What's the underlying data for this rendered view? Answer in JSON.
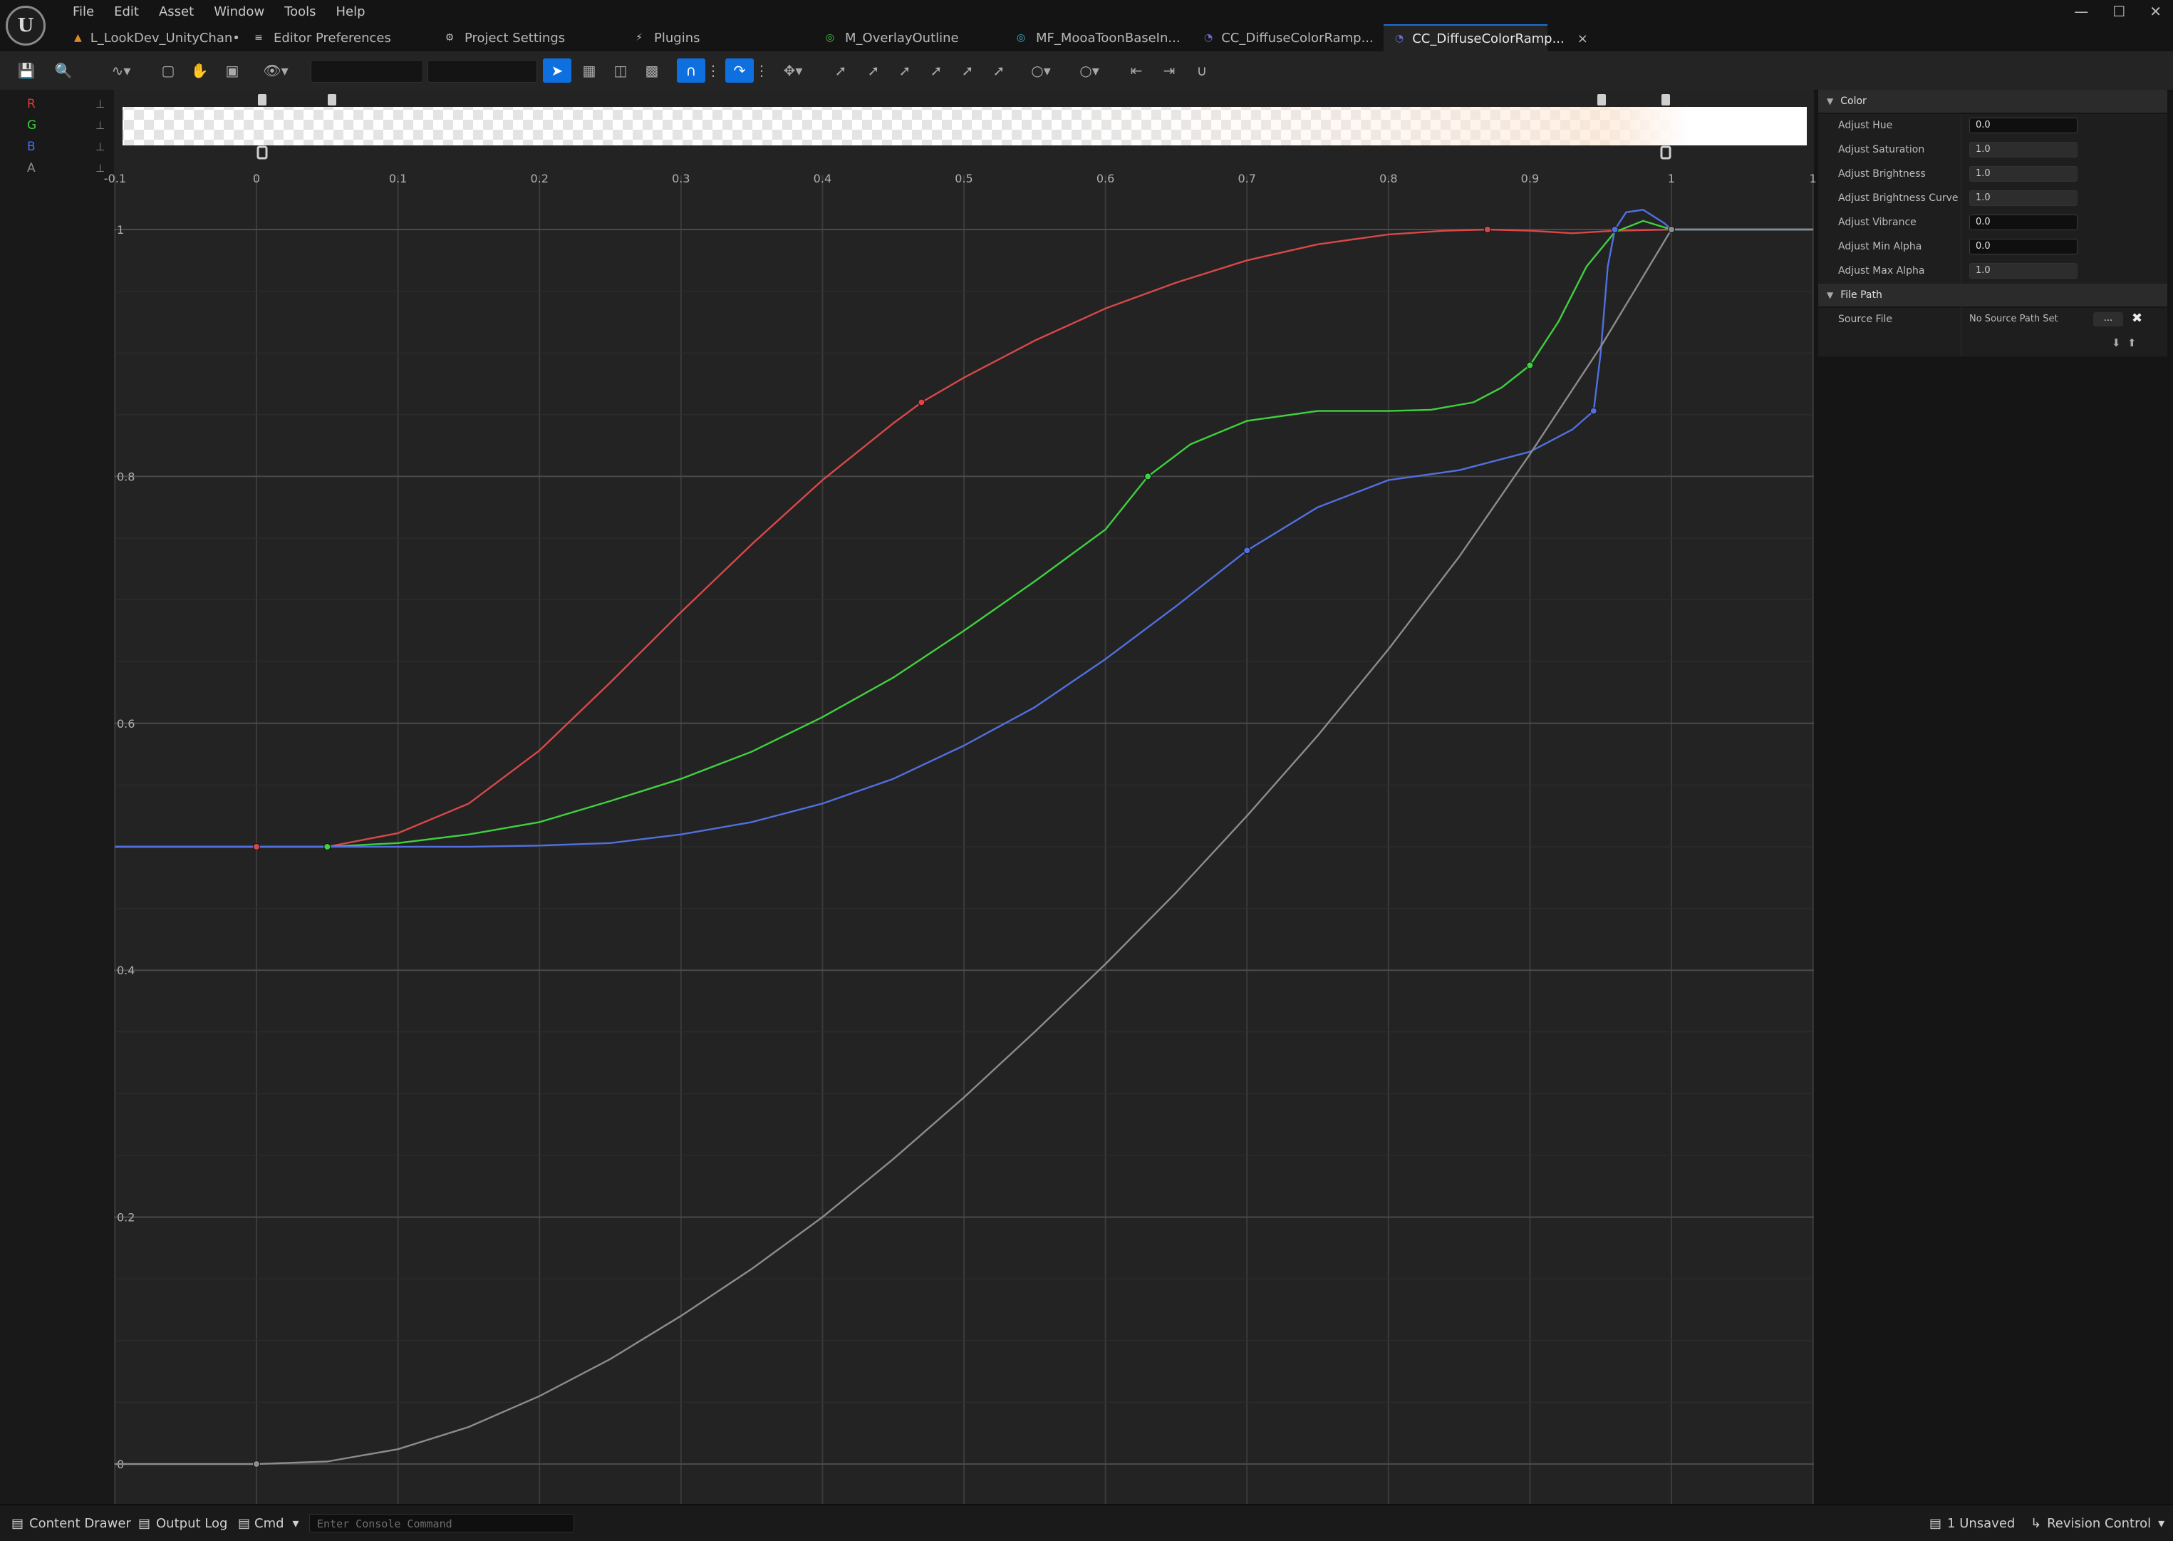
{
  "app": {
    "logo": "U"
  },
  "menu": [
    "File",
    "Edit",
    "Asset",
    "Window",
    "Tools",
    "Help"
  ],
  "tabs": [
    {
      "label": "L_LookDev_UnityChan•",
      "icon": "level-icon",
      "active": false
    },
    {
      "label": "Editor Preferences",
      "icon": "sliders-icon",
      "active": false
    },
    {
      "label": "Project Settings",
      "icon": "settings-icon",
      "active": false
    },
    {
      "label": "Plugins",
      "icon": "plug-icon",
      "active": false
    },
    {
      "label": "M_OverlayOutline",
      "icon": "material-icon",
      "active": false
    },
    {
      "label": "MF_MooaToonBaseIn...",
      "icon": "material-function-icon",
      "active": false
    },
    {
      "label": "CC_DiffuseColorRamp...",
      "icon": "curve-icon",
      "active": false
    },
    {
      "label": "CC_DiffuseColorRamp...",
      "icon": "curve-icon",
      "active": true
    }
  ],
  "channels": [
    {
      "label": "R",
      "color": "#e03a3a"
    },
    {
      "label": "G",
      "color": "#3ad13a"
    },
    {
      "label": "B",
      "color": "#4a6cf0"
    },
    {
      "label": "A",
      "color": "#8a8a8a"
    }
  ],
  "axes": {
    "x_ticks": [
      "-0.1",
      "0",
      "0.1",
      "0.2",
      "0.3",
      "0.4",
      "0.5",
      "0.6",
      "0.7",
      "0.8",
      "0.9",
      "1",
      "1"
    ],
    "y_ticks": [
      "1",
      "0.8",
      "0.6",
      "0.4",
      "0.2",
      "0"
    ]
  },
  "chart_data": {
    "type": "line",
    "xlim": [
      -0.1,
      1.1
    ],
    "ylim": [
      -0.03,
      1.07
    ],
    "grid": true,
    "series": [
      {
        "name": "R",
        "color": "#d94848",
        "points": [
          [
            -0.1,
            0.5
          ],
          [
            0,
            0.5
          ],
          [
            0.05,
            0.5
          ],
          [
            0.1,
            0.511
          ],
          [
            0.15,
            0.535
          ],
          [
            0.2,
            0.578
          ],
          [
            0.25,
            0.633
          ],
          [
            0.3,
            0.69
          ],
          [
            0.35,
            0.745
          ],
          [
            0.4,
            0.797
          ],
          [
            0.45,
            0.843
          ],
          [
            0.47,
            0.86
          ],
          [
            0.5,
            0.88
          ],
          [
            0.55,
            0.91
          ],
          [
            0.6,
            0.936
          ],
          [
            0.65,
            0.957
          ],
          [
            0.7,
            0.975
          ],
          [
            0.75,
            0.988
          ],
          [
            0.8,
            0.996
          ],
          [
            0.84,
            0.999
          ],
          [
            0.87,
            1.0
          ],
          [
            0.9,
            0.999
          ],
          [
            0.93,
            0.997
          ],
          [
            0.96,
            0.999
          ],
          [
            1.0,
            1.0
          ],
          [
            1.1,
            1.0
          ]
        ],
        "keys": [
          [
            0,
            0.5
          ],
          [
            0.05,
            0.5
          ],
          [
            0.47,
            0.86
          ],
          [
            0.87,
            1.0
          ],
          [
            1.0,
            1.0
          ]
        ]
      },
      {
        "name": "G",
        "color": "#3fd13f",
        "points": [
          [
            -0.1,
            0.5
          ],
          [
            0,
            0.5
          ],
          [
            0.05,
            0.5
          ],
          [
            0.1,
            0.503
          ],
          [
            0.15,
            0.51
          ],
          [
            0.2,
            0.52
          ],
          [
            0.25,
            0.537
          ],
          [
            0.3,
            0.555
          ],
          [
            0.35,
            0.577
          ],
          [
            0.4,
            0.605
          ],
          [
            0.45,
            0.637
          ],
          [
            0.5,
            0.675
          ],
          [
            0.55,
            0.715
          ],
          [
            0.6,
            0.757
          ],
          [
            0.63,
            0.8
          ],
          [
            0.66,
            0.826
          ],
          [
            0.7,
            0.845
          ],
          [
            0.75,
            0.853
          ],
          [
            0.8,
            0.853
          ],
          [
            0.83,
            0.854
          ],
          [
            0.86,
            0.86
          ],
          [
            0.88,
            0.872
          ],
          [
            0.9,
            0.89
          ],
          [
            0.92,
            0.925
          ],
          [
            0.94,
            0.97
          ],
          [
            0.96,
            0.998
          ],
          [
            0.98,
            1.007
          ],
          [
            1.0,
            1.0
          ],
          [
            1.1,
            1.0
          ]
        ],
        "keys": [
          [
            0.05,
            0.5
          ],
          [
            0.63,
            0.8
          ],
          [
            0.9,
            0.89
          ],
          [
            1.0,
            1.0
          ]
        ]
      },
      {
        "name": "B",
        "color": "#5070e0",
        "points": [
          [
            -0.1,
            0.5
          ],
          [
            0,
            0.5
          ],
          [
            0.05,
            0.5
          ],
          [
            0.15,
            0.5
          ],
          [
            0.2,
            0.501
          ],
          [
            0.25,
            0.503
          ],
          [
            0.3,
            0.51
          ],
          [
            0.35,
            0.52
          ],
          [
            0.4,
            0.535
          ],
          [
            0.45,
            0.555
          ],
          [
            0.5,
            0.582
          ],
          [
            0.55,
            0.613
          ],
          [
            0.6,
            0.652
          ],
          [
            0.65,
            0.695
          ],
          [
            0.7,
            0.74
          ],
          [
            0.75,
            0.775
          ],
          [
            0.8,
            0.797
          ],
          [
            0.85,
            0.805
          ],
          [
            0.9,
            0.82
          ],
          [
            0.93,
            0.838
          ],
          [
            0.945,
            0.853
          ],
          [
            0.95,
            0.9
          ],
          [
            0.955,
            0.97
          ],
          [
            0.96,
            1.0
          ],
          [
            0.968,
            1.014
          ],
          [
            0.98,
            1.016
          ],
          [
            0.995,
            1.005
          ],
          [
            1.0,
            1.0
          ],
          [
            1.1,
            1.0
          ]
        ],
        "keys": [
          [
            0.7,
            0.74
          ],
          [
            0.945,
            0.853
          ],
          [
            0.96,
            1.0
          ],
          [
            1.0,
            1.0
          ]
        ]
      },
      {
        "name": "A",
        "color": "#8c8c8c",
        "points": [
          [
            -0.1,
            0
          ],
          [
            0,
            0
          ],
          [
            0.05,
            0.002
          ],
          [
            0.1,
            0.012
          ],
          [
            0.15,
            0.03
          ],
          [
            0.2,
            0.055
          ],
          [
            0.25,
            0.085
          ],
          [
            0.3,
            0.12
          ],
          [
            0.35,
            0.158
          ],
          [
            0.4,
            0.2
          ],
          [
            0.45,
            0.247
          ],
          [
            0.5,
            0.297
          ],
          [
            0.55,
            0.35
          ],
          [
            0.6,
            0.405
          ],
          [
            0.65,
            0.463
          ],
          [
            0.7,
            0.525
          ],
          [
            0.75,
            0.59
          ],
          [
            0.8,
            0.66
          ],
          [
            0.85,
            0.735
          ],
          [
            0.9,
            0.818
          ],
          [
            0.95,
            0.905
          ],
          [
            1.0,
            1.0
          ],
          [
            1.1,
            1.0
          ]
        ],
        "keys": [
          [
            0,
            0
          ],
          [
            1.0,
            1.0
          ]
        ]
      }
    ]
  },
  "details": {
    "sections": [
      {
        "title": "Color",
        "rows": [
          {
            "label": "Adjust Hue",
            "value": "0.0",
            "style": "dark"
          },
          {
            "label": "Adjust Saturation",
            "value": "1.0",
            "style": "grey"
          },
          {
            "label": "Adjust Brightness",
            "value": "1.0",
            "style": "grey"
          },
          {
            "label": "Adjust Brightness Curve",
            "value": "1.0",
            "style": "grey"
          },
          {
            "label": "Adjust Vibrance",
            "value": "0.0",
            "style": "dark"
          },
          {
            "label": "Adjust Min Alpha",
            "value": "0.0",
            "style": "dark"
          },
          {
            "label": "Adjust Max Alpha",
            "value": "1.0",
            "style": "grey"
          }
        ]
      },
      {
        "title": "File Path",
        "rows": [
          {
            "label": "Source File",
            "value": "No Source Path Set",
            "browse": "...",
            "style": "text"
          }
        ]
      }
    ]
  },
  "status": {
    "content_drawer": "Content Drawer",
    "output_log": "Output Log",
    "cmd": "Cmd",
    "console_placeholder": "Enter Console Command",
    "unsaved": "1 Unsaved",
    "revision": "Revision Control"
  }
}
